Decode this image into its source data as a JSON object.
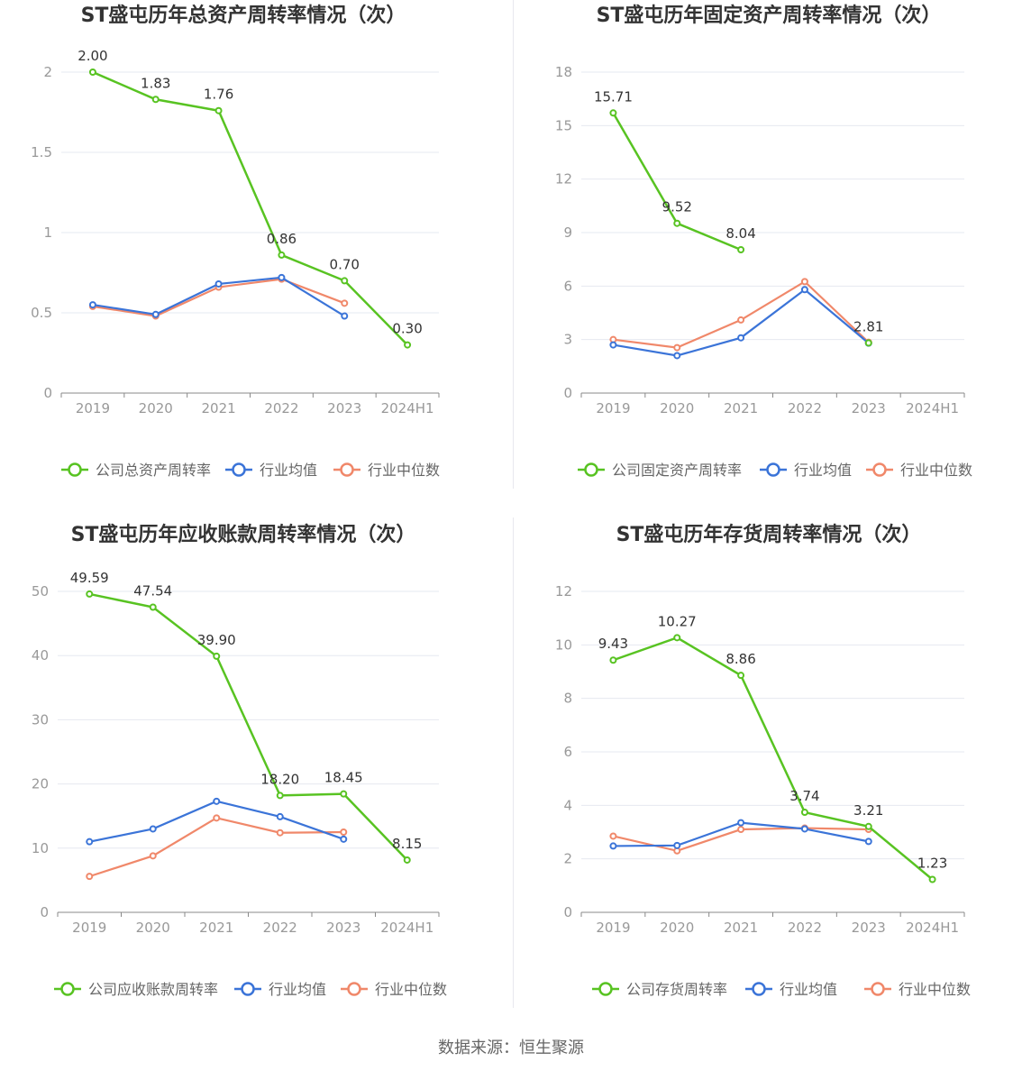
{
  "source": "数据来源：恒生聚源",
  "colors": {
    "company": "#58c322",
    "average": "#3b74d8",
    "median": "#f0886a"
  },
  "chart_data": [
    {
      "type": "line",
      "title": "ST盛屯历年总资产周转率情况（次）",
      "categories": [
        "2019",
        "2020",
        "2021",
        "2022",
        "2023",
        "2024H1"
      ],
      "ylim": [
        0,
        2
      ],
      "yticks": [
        0,
        0.5,
        1,
        1.5,
        2
      ],
      "ytick_labels": [
        "0",
        "0.5",
        "1",
        "1.5",
        "2"
      ],
      "series": [
        {
          "name": "公司总资产周转率",
          "values": [
            2.0,
            1.83,
            1.76,
            0.86,
            0.7,
            0.3
          ],
          "labels": [
            "2.00",
            "1.83",
            "1.76",
            "0.86",
            "0.70",
            "0.30"
          ]
        },
        {
          "name": "行业均值",
          "values": [
            0.55,
            0.49,
            0.68,
            0.72,
            0.48,
            null
          ]
        },
        {
          "name": "行业中位数",
          "values": [
            0.54,
            0.48,
            0.66,
            0.71,
            0.56,
            null
          ]
        }
      ]
    },
    {
      "type": "line",
      "title": "ST盛屯历年固定资产周转率情况（次）",
      "categories": [
        "2019",
        "2020",
        "2021",
        "2022",
        "2023",
        "2024H1"
      ],
      "ylim": [
        0,
        18
      ],
      "yticks": [
        0,
        3,
        6,
        9,
        12,
        15,
        18
      ],
      "ytick_labels": [
        "0",
        "3",
        "6",
        "9",
        "12",
        "15",
        "18"
      ],
      "series": [
        {
          "name": "公司固定资产周转率",
          "values": [
            15.71,
            9.52,
            8.04,
            null,
            2.81,
            null
          ],
          "labels": [
            "15.71",
            "9.52",
            "8.04",
            "",
            "2.81",
            ""
          ]
        },
        {
          "name": "行业均值",
          "values": [
            2.7,
            2.1,
            3.1,
            5.8,
            2.8,
            null
          ]
        },
        {
          "name": "行业中位数",
          "values": [
            3.0,
            2.55,
            4.1,
            6.25,
            2.85,
            null
          ]
        }
      ]
    },
    {
      "type": "line",
      "title": "ST盛屯历年应收账款周转率情况（次）",
      "categories": [
        "2019",
        "2020",
        "2021",
        "2022",
        "2023",
        "2024H1"
      ],
      "ylim": [
        0,
        50
      ],
      "yticks": [
        0,
        10,
        20,
        30,
        40,
        50
      ],
      "ytick_labels": [
        "0",
        "10",
        "20",
        "30",
        "40",
        "50"
      ],
      "series": [
        {
          "name": "公司应收账款周转率",
          "values": [
            49.59,
            47.54,
            39.9,
            18.2,
            18.45,
            8.15
          ],
          "labels": [
            "49.59",
            "47.54",
            "39.90",
            "18.20",
            "18.45",
            "8.15"
          ]
        },
        {
          "name": "行业均值",
          "values": [
            11.0,
            13.0,
            17.3,
            14.9,
            11.4,
            null
          ]
        },
        {
          "name": "行业中位数",
          "values": [
            5.6,
            8.8,
            14.7,
            12.4,
            12.5,
            null
          ]
        }
      ]
    },
    {
      "type": "line",
      "title": "ST盛屯历年存货周转率情况（次）",
      "categories": [
        "2019",
        "2020",
        "2021",
        "2022",
        "2023",
        "2024H1"
      ],
      "ylim": [
        0,
        12
      ],
      "yticks": [
        0,
        2,
        4,
        6,
        8,
        10,
        12
      ],
      "ytick_labels": [
        "0",
        "2",
        "4",
        "6",
        "8",
        "10",
        "12"
      ],
      "series": [
        {
          "name": "公司存货周转率",
          "values": [
            9.43,
            10.27,
            8.86,
            3.74,
            3.21,
            1.23
          ],
          "labels": [
            "9.43",
            "10.27",
            "8.86",
            "3.74",
            "3.21",
            "1.23"
          ]
        },
        {
          "name": "行业均值",
          "values": [
            2.48,
            2.5,
            3.35,
            3.12,
            2.65,
            null
          ]
        },
        {
          "name": "行业中位数",
          "values": [
            2.85,
            2.3,
            3.1,
            3.15,
            3.1,
            null
          ]
        }
      ]
    }
  ]
}
